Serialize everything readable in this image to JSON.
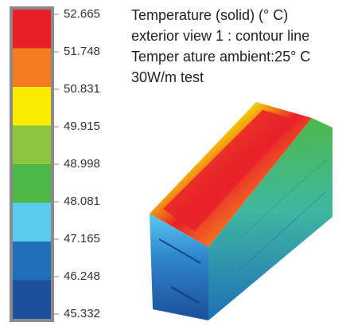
{
  "legend": {
    "labels": [
      "52.665",
      "51.748",
      "50.831",
      "49.915",
      "48.998",
      "48.081",
      "47.165",
      "46.248",
      "45.332"
    ],
    "colors": [
      "#e8202a",
      "#f47b20",
      "#f9ec00",
      "#8dc63f",
      "#4db848",
      "#5ccbf0",
      "#1f6fb8",
      "#1b4f9c"
    ]
  },
  "info": {
    "lines": [
      "Temperature (solid) (° C)",
      "exterior view 1 : contour line",
      "Temper ature ambient:25° C",
      "30W/m test"
    ]
  }
}
